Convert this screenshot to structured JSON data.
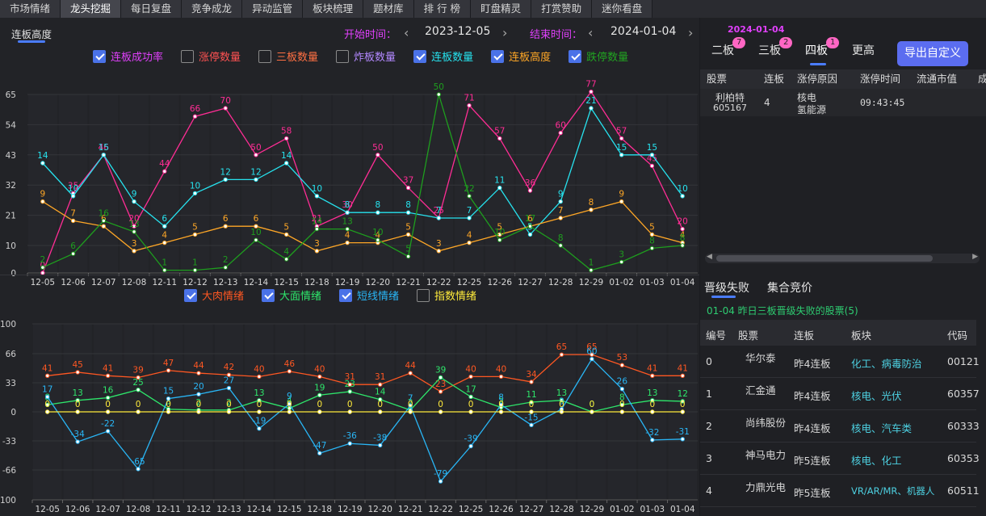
{
  "nav": [
    "市场情绪",
    "龙头挖掘",
    "每日复盘",
    "竞争成龙",
    "异动监管",
    "板块梳理",
    "题材库",
    "排 行 榜",
    "盯盘精灵",
    "打赏赞助",
    "迷你看盘"
  ],
  "nav_active": 1,
  "subtitle": "连板高度",
  "start_label": "开始时间：",
  "start_date": "2023-12-05",
  "end_label": "结束时间：",
  "end_date": "2024-01-04",
  "arrow_left": "‹",
  "arrow_right": "›",
  "legend1": [
    {
      "label": "连板成功率",
      "checked": true,
      "color": "#e040fb"
    },
    {
      "label": "涨停数量",
      "checked": false,
      "color": "#ff5252"
    },
    {
      "label": "三板数量",
      "checked": false,
      "color": "#ff7043"
    },
    {
      "label": "炸板数量",
      "checked": false,
      "color": "#b388ff"
    },
    {
      "label": "连板数量",
      "checked": true,
      "color": "#26e3ef"
    },
    {
      "label": "连板高度",
      "checked": true,
      "color": "#ffa726"
    },
    {
      "label": "跌停数量",
      "checked": true,
      "color": "#21a321"
    }
  ],
  "legend2": [
    {
      "label": "大肉情绪",
      "checked": true,
      "color": "#ff5722"
    },
    {
      "label": "大面情绪",
      "checked": true,
      "color": "#2ee66b"
    },
    {
      "label": "短线情绪",
      "checked": true,
      "color": "#29b6f6"
    },
    {
      "label": "指数情绪",
      "checked": false,
      "color": "#ffeb3b"
    }
  ],
  "chart_data": [
    {
      "type": "line",
      "x": [
        "12-05",
        "12-06",
        "12-07",
        "12-08",
        "12-11",
        "12-12",
        "12-13",
        "12-14",
        "12-15",
        "12-18",
        "12-19",
        "12-20",
        "12-21",
        "12-22",
        "12-25",
        "12-26",
        "12-27",
        "12-28",
        "12-29",
        "01-02",
        "01-03",
        "01-04"
      ],
      "yticks": [
        0,
        10,
        21,
        32,
        43,
        54,
        65
      ],
      "ylim": [
        0,
        65
      ],
      "series": [
        {
          "name": "连板成功率",
          "color": "#ff2d95",
          "values": [
            0,
            29,
            43,
            17,
            37,
            57,
            60,
            43,
            49,
            17,
            22,
            43,
            31,
            20,
            61,
            49,
            30,
            51,
            66,
            49,
            39,
            16
          ],
          "labels": [
            0,
            35,
            46,
            20,
            44,
            66,
            70,
            50,
            58,
            21,
            30,
            50,
            37,
            25,
            71,
            57,
            36,
            60,
            77,
            57,
            45,
            20
          ]
        },
        {
          "name": "连板数量",
          "color": "#26e3ef",
          "values": [
            40,
            28,
            43,
            26,
            17,
            29,
            34,
            34,
            40,
            28,
            22,
            22,
            22,
            20,
            20,
            31,
            14,
            26,
            60,
            43,
            43,
            28
          ],
          "labels": [
            14,
            10,
            15,
            9,
            6,
            10,
            12,
            12,
            14,
            10,
            8,
            8,
            8,
            7,
            7,
            11,
            5,
            9,
            21,
            15,
            15,
            10
          ]
        },
        {
          "name": "连板高度",
          "color": "#ffa726",
          "values": [
            26,
            19,
            17,
            8,
            11,
            14,
            17,
            17,
            14,
            8,
            11,
            11,
            14,
            8,
            11,
            14,
            17,
            20,
            23,
            26,
            14,
            11
          ],
          "labels": [
            9,
            7,
            6,
            3,
            4,
            5,
            6,
            6,
            5,
            3,
            4,
            4,
            5,
            3,
            4,
            5,
            6,
            7,
            8,
            9,
            5,
            4
          ]
        },
        {
          "name": "跌停数量",
          "color": "#1e9e1e",
          "values": [
            2,
            7,
            19,
            15,
            1,
            1,
            2,
            12,
            5,
            16,
            16,
            12,
            6,
            65,
            28,
            12,
            17,
            10,
            1,
            4,
            9,
            10
          ],
          "labels": [
            2,
            6,
            16,
            13,
            1,
            1,
            2,
            10,
            4,
            14,
            13,
            10,
            5,
            50,
            22,
            10,
            17,
            8,
            1,
            3,
            8,
            8
          ]
        }
      ]
    },
    {
      "type": "line",
      "x": [
        "12-05",
        "12-06",
        "12-07",
        "12-08",
        "12-11",
        "12-12",
        "12-13",
        "12-14",
        "12-15",
        "12-18",
        "12-19",
        "12-20",
        "12-21",
        "12-22",
        "12-25",
        "12-26",
        "12-27",
        "12-28",
        "12-29",
        "01-02",
        "01-03",
        "01-04"
      ],
      "yticks": [
        -100,
        -66,
        -33,
        0,
        33,
        66,
        100
      ],
      "ylim": [
        -100,
        100
      ],
      "series": [
        {
          "name": "大肉情绪",
          "color": "#ff5722",
          "values": [
            41,
            45,
            41,
            39,
            47,
            44,
            42,
            40,
            46,
            40,
            31,
            31,
            44,
            23,
            40,
            40,
            34,
            65,
            65,
            53,
            41,
            41
          ]
        },
        {
          "name": "大面情绪",
          "color": "#2ee66b",
          "values": [
            8,
            13,
            16,
            25,
            3,
            2,
            2,
            13,
            4,
            19,
            23,
            14,
            2,
            39,
            17,
            5,
            11,
            13,
            0,
            8,
            13,
            12
          ]
        },
        {
          "name": "短线情绪",
          "color": "#29b6f6",
          "values": [
            17,
            -34,
            -22,
            -65,
            15,
            20,
            27,
            -19,
            9,
            -47,
            -36,
            -38,
            7,
            -79,
            -39,
            8,
            -15,
            3,
            60,
            26,
            -32,
            -31
          ]
        },
        {
          "name": "指数情绪",
          "color": "#ffeb3b",
          "values": [
            0,
            0,
            0,
            0,
            0,
            0,
            0,
            0,
            0,
            0,
            0,
            0,
            0,
            0,
            0,
            0,
            0,
            0,
            0,
            0,
            0,
            0
          ]
        }
      ]
    }
  ],
  "right": {
    "date": "2024-01-04",
    "tabs": [
      {
        "label": "二板",
        "badge": "7"
      },
      {
        "label": "三板",
        "badge": "2"
      },
      {
        "label": "四板",
        "badge": "1"
      },
      {
        "label": "更高",
        "badge": ""
      }
    ],
    "export_label": "导出自定义",
    "table1_headers": [
      "股票",
      "连板",
      "涨停原因",
      "涨停时间",
      "流通市值",
      "成"
    ],
    "table1_row": {
      "name": "利柏特",
      "code": "605167",
      "boards": "4",
      "reason1": "核电",
      "reason2": "氢能源",
      "time": "09:43:45"
    },
    "scroll_left": "◀",
    "scroll_right": "▶",
    "tabs2": [
      "晋级失败",
      "集合竞价"
    ],
    "fail_note": "01-04  昨日三板晋级失败的股票(5)",
    "table2_headers": [
      "编号",
      "股票",
      "连板",
      "板块",
      "代码"
    ],
    "table2_rows": [
      {
        "no": "0",
        "name": "华尔泰",
        "boards": "昨4连板",
        "sector": "化工、病毒防治",
        "code": "00121"
      },
      {
        "no": "1",
        "name": "汇金通",
        "boards": "昨4连板",
        "sector": "核电、光伏",
        "code": "60357"
      },
      {
        "no": "2",
        "name": "尚纬股份",
        "boards": "昨4连板",
        "sector": "核电、汽车类",
        "code": "60333"
      },
      {
        "no": "3",
        "name": "神马电力",
        "boards": "昨5连板",
        "sector": "核电、化工",
        "code": "60353"
      },
      {
        "no": "4",
        "name": "力鼎光电",
        "boards": "昨5连板",
        "sector": "VR/AR/MR、机器人",
        "code": "60511"
      }
    ]
  }
}
